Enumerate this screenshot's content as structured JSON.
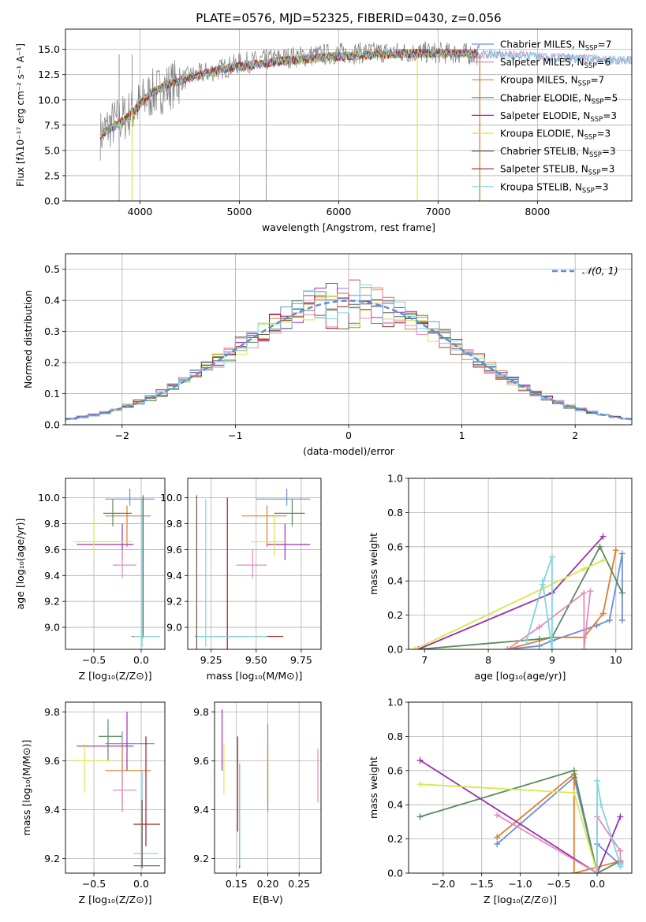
{
  "colors": {
    "c1": "#6a8fd6",
    "c2": "#e07d2a",
    "c3": "#5a8a5e",
    "c4": "#9b2fae",
    "c5": "#d8e84a",
    "c6": "#6b5a4a",
    "c7": "#a31f1f",
    "c8": "#e68ab8",
    "c9": "#7fd6dc",
    "grid": "#b0b0b0",
    "data": "#808080",
    "gauss": "#5b8fd6"
  },
  "chart_data": [
    {
      "id": "spectrum",
      "type": "line",
      "title": "PLATE=0576, MJD=52325, FIBERID=0430, z=0.056",
      "xlabel": "wavelength [Angstrom, rest frame]",
      "ylabel": "Flux [fλ10⁻¹⁷ erg cm⁻² s⁻¹ A⁻¹]",
      "xlim": [
        3250,
        8950
      ],
      "ylim": [
        0,
        17
      ],
      "xticks": [
        4000,
        5000,
        6000,
        7000,
        8000
      ],
      "yticks": [
        0.0,
        2.5,
        5.0,
        7.5,
        10.0,
        12.5,
        15.0
      ],
      "xtick_labels": [
        "4000",
        "5000",
        "6000",
        "7000",
        "8000"
      ],
      "ytick_labels": [
        "0.0",
        "2.5",
        "5.0",
        "7.5",
        "10.0",
        "12.5",
        "15.0"
      ],
      "legend": [
        {
          "label": "Chabrier MILES, N",
          "sub": "SSP",
          "suffix": "=7",
          "color": "c1"
        },
        {
          "label": "Salpeter MILES, N",
          "sub": "SSP",
          "suffix": "=6",
          "color": "c8"
        },
        {
          "label": "Kroupa MILES, N",
          "sub": "SSP",
          "suffix": "=7",
          "color": "c2"
        },
        {
          "label": "Chabrier ELODIE, N",
          "sub": "SSP",
          "suffix": "=5",
          "color": "c3"
        },
        {
          "label": "Salpeter ELODIE, N",
          "sub": "SSP",
          "suffix": "=3",
          "color": "c4"
        },
        {
          "label": "Kroupa ELODIE, N",
          "sub": "SSP",
          "suffix": "=3",
          "color": "c5"
        },
        {
          "label": "Chabrier STELIB, N",
          "sub": "SSP",
          "suffix": "=3",
          "color": "c6"
        },
        {
          "label": "Salpeter STELIB, N",
          "sub": "SSP",
          "suffix": "=3",
          "color": "c7"
        },
        {
          "label": "Kroupa STELIB, N",
          "sub": "SSP",
          "suffix": "=3",
          "color": "c9"
        }
      ],
      "continuum": [
        [
          3600,
          6.5
        ],
        [
          3700,
          7.5
        ],
        [
          3850,
          8.3
        ],
        [
          3950,
          9.2
        ],
        [
          4100,
          10.5
        ],
        [
          4300,
          11.4
        ],
        [
          4500,
          12.3
        ],
        [
          4800,
          13.0
        ],
        [
          5000,
          13.6
        ],
        [
          5300,
          14.0
        ],
        [
          5600,
          14.3
        ],
        [
          6000,
          14.6
        ],
        [
          6400,
          14.7
        ],
        [
          6800,
          14.7
        ],
        [
          7200,
          14.6
        ],
        [
          7400,
          14.5
        ]
      ],
      "model_continuum": [
        [
          3600,
          6.5
        ],
        [
          3700,
          7.2
        ],
        [
          3850,
          8.0
        ],
        [
          3950,
          9.0
        ],
        [
          4100,
          10.6
        ],
        [
          4300,
          11.6
        ],
        [
          4500,
          12.2
        ],
        [
          4800,
          13.0
        ],
        [
          5000,
          13.3
        ],
        [
          5300,
          13.7
        ],
        [
          5600,
          14.0
        ],
        [
          6000,
          14.3
        ],
        [
          6400,
          14.5
        ],
        [
          6800,
          14.6
        ],
        [
          7200,
          14.6
        ],
        [
          7600,
          14.5
        ],
        [
          8000,
          14.3
        ],
        [
          8400,
          14.1
        ],
        [
          8950,
          13.9
        ]
      ],
      "spikes": [
        [
          5270,
          0
        ],
        [
          6790,
          0
        ],
        [
          7420,
          0
        ],
        [
          3920,
          0
        ],
        [
          3790,
          0
        ]
      ]
    },
    {
      "id": "residual_hist",
      "type": "bar",
      "xlabel": "(data-model)/error",
      "ylabel": "Normed distribution",
      "xlim": [
        -2.5,
        2.5
      ],
      "ylim": [
        0,
        0.55
      ],
      "xticks": [
        -2,
        -1,
        0,
        1,
        2
      ],
      "yticks": [
        0.0,
        0.1,
        0.2,
        0.3,
        0.4,
        0.5
      ],
      "xtick_labels": [
        "−2",
        "−1",
        "0",
        "1",
        "2"
      ],
      "ytick_labels": [
        "0.0",
        "0.1",
        "0.2",
        "0.3",
        "0.4",
        "0.5"
      ],
      "gauss_label": "𝒩(0, 1)",
      "bin_width": 0.1
    },
    {
      "id": "age_vs_Z",
      "type": "scatter",
      "xlabel": "Z [log₁₀(Z/Z⊙)]",
      "ylabel": "age  [log₁₀(age/yr)]",
      "xlim": [
        -0.8,
        0.25
      ],
      "ylim": [
        8.83,
        10.15
      ],
      "xticks": [
        -0.5,
        0.0
      ],
      "yticks": [
        9.0,
        9.2,
        9.4,
        9.6,
        9.8,
        10.0
      ],
      "xtick_labels": [
        "−0.5",
        "0.0"
      ],
      "ytick_labels": [
        "9.0",
        "9.2",
        "9.4",
        "9.6",
        "9.8",
        "10.0"
      ],
      "crosses": [
        {
          "c": "c1",
          "x": -0.12,
          "y": 9.99,
          "xe": [
            -0.38,
            0.14
          ],
          "ye": [
            9.94,
            10.07
          ]
        },
        {
          "c": "c2",
          "x": -0.15,
          "y": 9.86,
          "xe": [
            -0.38,
            0.1
          ],
          "ye": [
            9.62,
            9.94
          ]
        },
        {
          "c": "c3",
          "x": -0.3,
          "y": 9.88,
          "xe": [
            -0.4,
            -0.1
          ],
          "ye": [
            9.78,
            9.99
          ]
        },
        {
          "c": "c4",
          "x": -0.2,
          "y": 9.64,
          "xe": [
            -0.68,
            -0.08
          ],
          "ye": [
            9.52,
            9.8
          ]
        },
        {
          "c": "c5",
          "x": -0.5,
          "y": 9.66,
          "xe": [
            -0.72,
            -0.1
          ],
          "ye": [
            9.55,
            9.86
          ]
        },
        {
          "c": "c8",
          "x": -0.2,
          "y": 9.48,
          "xe": [
            -0.3,
            -0.05
          ],
          "ye": [
            9.38,
            9.6
          ]
        },
        {
          "c": "c6",
          "x": 0.02,
          "y": 8.93,
          "xe": [
            -0.1,
            0.2
          ],
          "ye": [
            8.92,
            10.02
          ]
        },
        {
          "c": "c9",
          "x": 0.01,
          "y": 8.93,
          "xe": [
            -0.08,
            0.2
          ],
          "ye": [
            8.85,
            9.99
          ]
        }
      ]
    },
    {
      "id": "age_vs_mass",
      "type": "scatter",
      "xlabel": "mass [log₁₀(M/M⊙)]",
      "ylabel": "",
      "xlim": [
        9.12,
        9.86
      ],
      "ylim": [
        8.83,
        10.15
      ],
      "xticks": [
        9.25,
        9.5,
        9.75
      ],
      "yticks": [
        9.0,
        9.2,
        9.4,
        9.6,
        9.8,
        10.0
      ],
      "xtick_labels": [
        "9.25",
        "9.50",
        "9.75"
      ],
      "ytick_labels": [
        "9.0",
        "9.2",
        "9.4",
        "9.6",
        "9.8",
        "10.0"
      ],
      "crosses": [
        {
          "c": "c1",
          "x": 9.67,
          "y": 9.99,
          "xe": [
            9.5,
            9.8
          ],
          "ye": [
            9.94,
            10.07
          ]
        },
        {
          "c": "c2",
          "x": 9.56,
          "y": 9.86,
          "xe": [
            9.42,
            9.67
          ],
          "ye": [
            9.62,
            9.94
          ]
        },
        {
          "c": "c3",
          "x": 9.7,
          "y": 9.88,
          "xe": [
            9.6,
            9.77
          ],
          "ye": [
            9.78,
            9.99
          ]
        },
        {
          "c": "c4",
          "x": 9.66,
          "y": 9.64,
          "xe": [
            9.56,
            9.8
          ],
          "ye": [
            9.52,
            9.8
          ]
        },
        {
          "c": "c5",
          "x": 9.6,
          "y": 9.66,
          "xe": [
            9.47,
            9.67
          ],
          "ye": [
            9.55,
            9.86
          ]
        },
        {
          "c": "c8",
          "x": 9.48,
          "y": 9.48,
          "xe": [
            9.39,
            9.56
          ],
          "ye": [
            9.38,
            9.6
          ]
        },
        {
          "c": "c6",
          "x": 9.17,
          "y": 8.93,
          "xe": [
            9.16,
            9.44
          ],
          "ye": [
            8.83,
            10.02
          ]
        },
        {
          "c": "c7",
          "x": 9.34,
          "y": 8.93,
          "xe": [
            9.25,
            9.65
          ],
          "ye": [
            8.83,
            10.0
          ]
        },
        {
          "c": "c9",
          "x": 9.22,
          "y": 8.93,
          "xe": [
            9.17,
            9.56
          ],
          "ye": [
            8.85,
            9.99
          ]
        }
      ]
    },
    {
      "id": "mass_weight_vs_age",
      "type": "line",
      "xlabel": "age  [log₁₀(age/yr)]",
      "ylabel": "mass weight",
      "xlim": [
        6.75,
        10.25
      ],
      "ylim": [
        0,
        1
      ],
      "xticks": [
        7,
        8,
        9,
        10
      ],
      "yticks": [
        0.0,
        0.2,
        0.4,
        0.6,
        0.8,
        1.0
      ],
      "xtick_labels": [
        "7",
        "8",
        "9",
        "10"
      ],
      "ytick_labels": [
        "0.0",
        "0.2",
        "0.4",
        "0.6",
        "0.8",
        "1.0"
      ],
      "series": [
        {
          "c": "c1",
          "x": [
            8.3,
            8.8,
            9.0,
            9.7,
            9.9,
            10.1,
            10.1
          ],
          "y": [
            0.0,
            0.02,
            0.05,
            0.14,
            0.17,
            0.56,
            0.17
          ]
        },
        {
          "c": "c2",
          "x": [
            8.3,
            9.0,
            9.5,
            9.8,
            10.0
          ],
          "y": [
            0.0,
            0.07,
            0.07,
            0.21,
            0.58
          ]
        },
        {
          "c": "c3",
          "x": [
            6.9,
            8.8,
            9.0,
            9.75,
            10.1
          ],
          "y": [
            0.0,
            0.06,
            0.07,
            0.6,
            0.33
          ]
        },
        {
          "c": "c4",
          "x": [
            6.9,
            9.0,
            9.8
          ],
          "y": [
            0.0,
            0.33,
            0.66
          ]
        },
        {
          "c": "c5",
          "x": [
            6.85,
            9.5,
            9.8
          ],
          "y": [
            0.0,
            0.47,
            0.52
          ]
        },
        {
          "c": "c8",
          "x": [
            8.3,
            8.8,
            9.5,
            9.5,
            9.6
          ],
          "y": [
            0.0,
            0.13,
            0.33,
            0.0,
            0.34
          ]
        },
        {
          "c": "c9",
          "x": [
            8.6,
            8.85,
            9.0,
            9.0,
            8.85
          ],
          "y": [
            0.05,
            0.38,
            0.54,
            0.0,
            0.4
          ]
        }
      ]
    },
    {
      "id": "mass_vs_Z",
      "type": "scatter",
      "xlabel": "Z [log₁₀(Z/Z⊙)]",
      "ylabel": "mass [log₁₀(M/M⊙)]",
      "xlim": [
        -0.8,
        0.25
      ],
      "ylim": [
        9.14,
        9.84
      ],
      "xticks": [
        -0.5,
        0.0
      ],
      "yticks": [
        9.2,
        9.4,
        9.6,
        9.8
      ],
      "xtick_labels": [
        "−0.5",
        "0.0"
      ],
      "ytick_labels": [
        "9.2",
        "9.4",
        "9.6",
        "9.8"
      ],
      "crosses": [
        {
          "c": "c1",
          "x": -0.2,
          "y": 9.67,
          "xe": [
            -0.38,
            0.14
          ],
          "ye": [
            9.39,
            9.72
          ]
        },
        {
          "c": "c2",
          "x": -0.2,
          "y": 9.56,
          "xe": [
            -0.38,
            0.1
          ],
          "ye": [
            9.42,
            9.67
          ]
        },
        {
          "c": "c3",
          "x": -0.35,
          "y": 9.7,
          "xe": [
            -0.45,
            -0.2
          ],
          "ye": [
            9.6,
            9.77
          ]
        },
        {
          "c": "c4",
          "x": -0.15,
          "y": 9.66,
          "xe": [
            -0.68,
            -0.08
          ],
          "ye": [
            9.56,
            9.8
          ]
        },
        {
          "c": "c5",
          "x": -0.6,
          "y": 9.6,
          "xe": [
            -0.72,
            -0.3
          ],
          "ye": [
            9.47,
            9.67
          ]
        },
        {
          "c": "c8",
          "x": -0.2,
          "y": 9.48,
          "xe": [
            -0.3,
            -0.05
          ],
          "ye": [
            9.39,
            9.56
          ]
        },
        {
          "c": "c7",
          "x": 0.05,
          "y": 9.34,
          "xe": [
            -0.08,
            0.2
          ],
          "ye": [
            9.25,
            9.7
          ]
        },
        {
          "c": "c9",
          "x": 0.01,
          "y": 9.22,
          "xe": [
            -0.08,
            0.18
          ],
          "ye": [
            9.17,
            9.56
          ]
        },
        {
          "c": "c6",
          "x": 0.01,
          "y": 9.17,
          "xe": [
            -0.08,
            0.2
          ],
          "ye": [
            9.16,
            9.44
          ]
        }
      ]
    },
    {
      "id": "mass_vs_EBV",
      "type": "scatter",
      "xlabel": "E(B-V)",
      "ylabel": "",
      "xlim": [
        0.115,
        0.285
      ],
      "ylim": [
        9.14,
        9.84
      ],
      "xticks": [
        0.15,
        0.2,
        0.25
      ],
      "yticks": [
        9.2,
        9.4,
        9.6,
        9.8
      ],
      "xtick_labels": [
        "0.15",
        "0.20",
        "0.25"
      ],
      "ytick_labels": [
        "9.2",
        "9.4",
        "9.6",
        "9.8"
      ],
      "crosses": [
        {
          "c": "c4",
          "x": 0.127,
          "y": 9.66,
          "xe": [
            0.127,
            0.127
          ],
          "ye": [
            9.56,
            9.81
          ]
        },
        {
          "c": "c5",
          "x": 0.13,
          "y": 9.6,
          "xe": [
            0.13,
            0.13
          ],
          "ye": [
            9.46,
            9.67
          ]
        },
        {
          "c": "c7",
          "x": 0.152,
          "y": 9.55,
          "xe": [
            0.152,
            0.152
          ],
          "ye": [
            9.31,
            9.7
          ]
        },
        {
          "c": "c6",
          "x": 0.155,
          "y": 9.2,
          "xe": [
            0.155,
            0.155
          ],
          "ye": [
            9.16,
            9.59
          ]
        },
        {
          "c": "c9",
          "x": 0.155,
          "y": 9.35,
          "xe": [
            0.155,
            0.155
          ],
          "ye": [
            9.17,
            9.59
          ]
        },
        {
          "c": "c1",
          "x": 0.2,
          "y": 9.55,
          "xe": [
            0.2,
            0.2
          ],
          "ye": [
            9.39,
            9.75
          ]
        },
        {
          "c": "c2",
          "x": 0.2,
          "y": 9.56,
          "xe": [
            0.2,
            0.2
          ],
          "ye": [
            9.42,
            9.69
          ]
        },
        {
          "c": "c8",
          "x": 0.28,
          "y": 9.55,
          "xe": [
            0.28,
            0.28
          ],
          "ye": [
            9.43,
            9.65
          ]
        }
      ]
    },
    {
      "id": "mass_weight_vs_Z",
      "type": "line",
      "xlabel": "Z [log₁₀(Z/Z⊙)]",
      "ylabel": "mass weight",
      "xlim": [
        -2.45,
        0.45
      ],
      "ylim": [
        0,
        1
      ],
      "xticks": [
        -2.0,
        -1.5,
        -1.0,
        -0.5,
        0.0
      ],
      "yticks": [
        0.0,
        0.2,
        0.4,
        0.6,
        0.8,
        1.0
      ],
      "xtick_labels": [
        "−2.0",
        "−1.5",
        "−1.0",
        "−0.5",
        "0.0"
      ],
      "ytick_labels": [
        "0.0",
        "0.2",
        "0.4",
        "0.6",
        "0.8",
        "1.0"
      ],
      "series": [
        {
          "c": "c1",
          "x": [
            -1.3,
            -0.3,
            0.0,
            0.0,
            0.3,
            0.3
          ],
          "y": [
            0.17,
            0.56,
            0.0,
            0.17,
            0.05,
            0.05
          ]
        },
        {
          "c": "c2",
          "x": [
            -1.3,
            -0.3,
            -0.3,
            0.3,
            0.3
          ],
          "y": [
            0.21,
            0.58,
            0.0,
            0.07,
            0.07
          ]
        },
        {
          "c": "c3",
          "x": [
            -2.3,
            -0.3,
            0.0,
            0.3,
            0.3
          ],
          "y": [
            0.33,
            0.6,
            0.0,
            0.07,
            0.06
          ]
        },
        {
          "c": "c4",
          "x": [
            -2.3,
            0.0,
            0.3
          ],
          "y": [
            0.66,
            0.0,
            0.33
          ]
        },
        {
          "c": "c5",
          "x": [
            -2.3,
            -0.3,
            0.0
          ],
          "y": [
            0.52,
            0.47,
            0.0
          ]
        },
        {
          "c": "c8",
          "x": [
            -1.3,
            0.0,
            0.0,
            0.3,
            0.3
          ],
          "y": [
            0.34,
            0.0,
            0.33,
            0.13,
            0.06
          ]
        },
        {
          "c": "c9",
          "x": [
            0.0,
            0.0,
            0.05,
            0.3,
            0.3
          ],
          "y": [
            0.0,
            0.54,
            0.4,
            0.05,
            0.04
          ]
        }
      ]
    }
  ]
}
